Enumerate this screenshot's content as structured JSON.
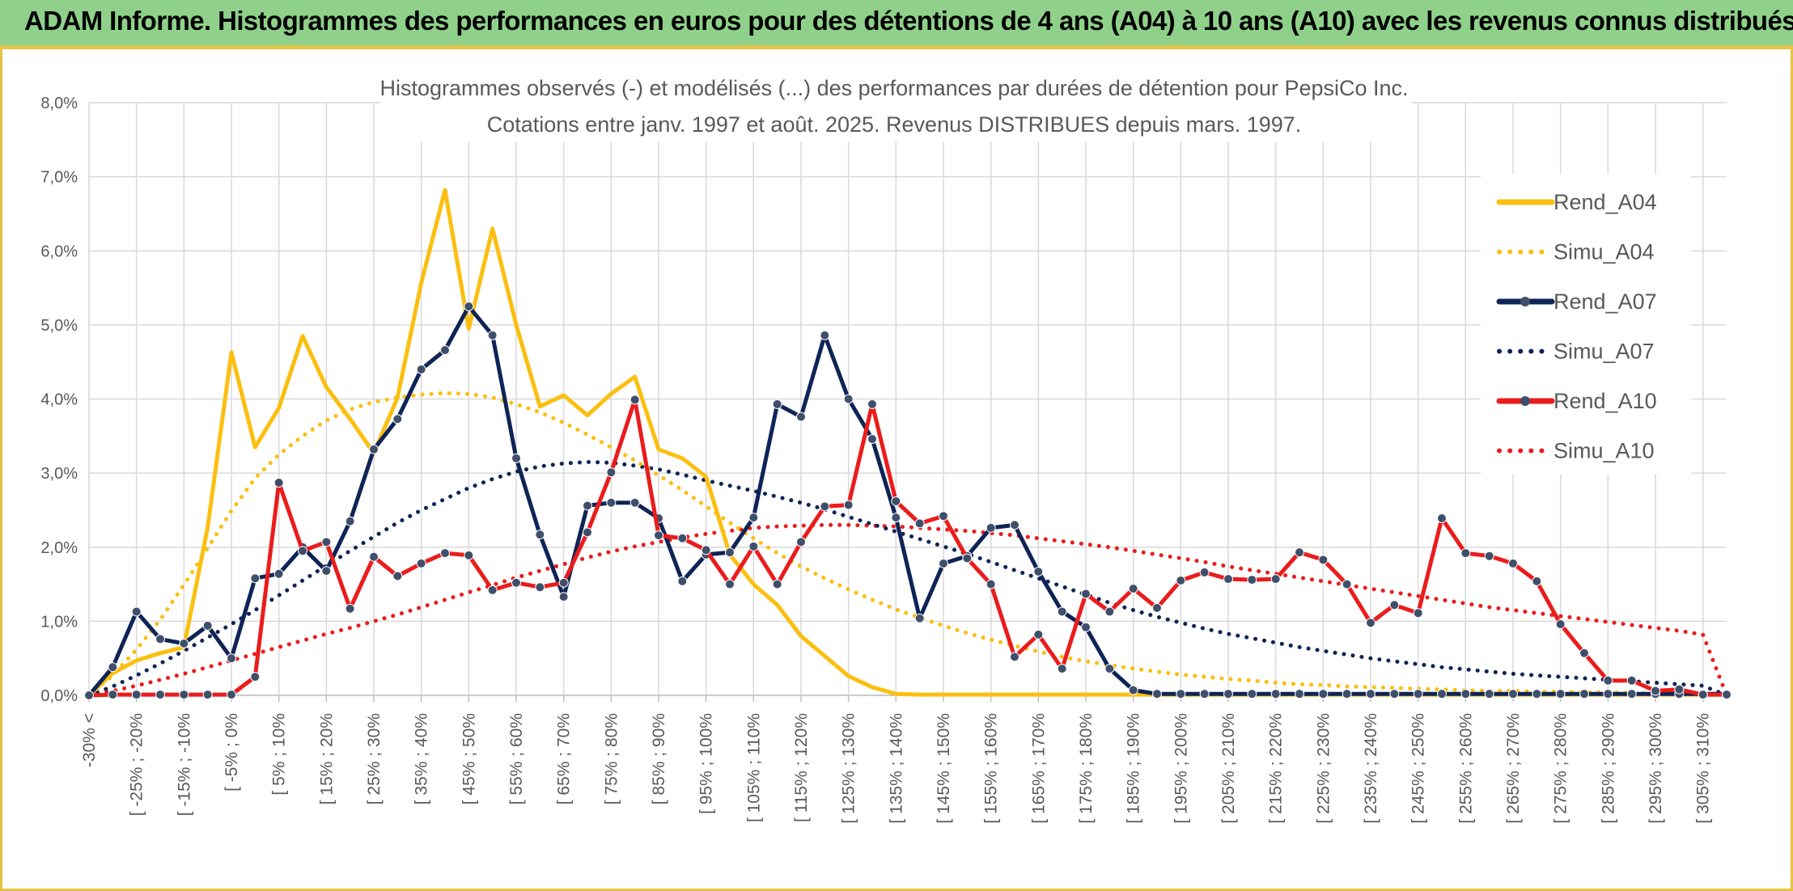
{
  "banner": {
    "title": "ADAM Informe. Histogrammes des performances en euros pour des détentions de 4 ans (A04) à 10 ans (A10) avec les revenus connus distribués"
  },
  "chart_data": {
    "type": "line",
    "title": "Histogrammes observés (-) et modélisés (...) des performances par durées de détention pour PepsiCo Inc.",
    "subtitle": "Cotations entre janv. 1997 et août. 2025. Revenus DISTRIBUES depuis mars. 1997.",
    "ylim": [
      0,
      8
    ],
    "yticks": [
      "0,0%",
      "1,0%",
      "2,0%",
      "3,0%",
      "4,0%",
      "5,0%",
      "6,0%",
      "7,0%",
      "8,0%"
    ],
    "grid": true,
    "legend_position": "right",
    "x_labels": [
      "-30% <",
      "[ -25% ; -20%",
      "[ -15% ; -10%",
      "[ -5% ; 0%",
      "[ 5% ; 10%",
      "[ 15% ; 20%",
      "[ 25% ; 30%",
      "[ 35% ; 40%",
      "[ 45% ; 50%",
      "[ 55% ; 60%",
      "[ 65% ; 70%",
      "[ 75% ; 80%",
      "[ 85% ; 90%",
      "[ 95% ; 100%",
      "[ 105% ; 110%",
      "[ 115% ; 120%",
      "[ 125% ; 130%",
      "[ 135% ; 140%",
      "[ 145% ; 150%",
      "[ 155% ; 160%",
      "[ 165% ; 170%",
      "[ 175% ; 180%",
      "[ 185% ; 190%",
      "[ 195% ; 200%",
      "[ 205% ; 210%",
      "[ 215% ; 220%",
      "[ 225% ; 230%",
      "[ 235% ; 240%",
      "[ 245% ; 250%",
      "[ 255% ; 260%",
      "[ 265% ; 270%",
      "[ 275% ; 280%",
      "[ 285% ; 290%",
      "[ 295% ; 300%",
      "[ 305% ; 310%"
    ],
    "series": [
      {
        "name": "Rend_A04",
        "style": "solid",
        "color": "#fbbf10",
        "markers": false,
        "values": [
          0,
          0.3,
          0.47,
          0.57,
          0.65,
          2.27,
          4.63,
          3.35,
          3.88,
          4.85,
          4.16,
          3.73,
          3.27,
          4.02,
          5.57,
          6.82,
          4.95,
          6.3,
          5.0,
          3.9,
          4.05,
          3.78,
          4.07,
          4.3,
          3.32,
          3.2,
          2.95,
          1.9,
          1.5,
          1.22,
          0.8,
          0.53,
          0.26,
          0.11,
          0.02,
          0.01,
          0.01,
          0.01,
          0.01,
          0.01,
          0.01,
          0.01,
          0.01,
          0.01,
          0.01,
          0.01,
          0.01,
          0.01,
          0.01,
          0.01,
          0.01,
          0.01,
          0.01,
          0.01,
          0.01,
          0.01,
          0.01,
          0.01,
          0.01,
          0.01,
          0.01,
          0.01,
          0.01,
          0.01,
          0.01,
          0.01,
          0.01,
          0.01,
          0.01,
          0.01
        ]
      },
      {
        "name": "Simu_A04",
        "style": "dotted",
        "color": "#fbbf10",
        "markers": false,
        "values": [
          0,
          0.27,
          0.62,
          1.02,
          1.49,
          1.99,
          2.49,
          2.93,
          3.25,
          3.5,
          3.71,
          3.86,
          3.96,
          4.02,
          4.06,
          4.08,
          4.07,
          4.02,
          3.93,
          3.82,
          3.68,
          3.52,
          3.35,
          3.17,
          2.97,
          2.77,
          2.55,
          2.33,
          2.12,
          1.92,
          1.74,
          1.58,
          1.43,
          1.29,
          1.16,
          1.05,
          0.94,
          0.84,
          0.75,
          0.67,
          0.59,
          0.52,
          0.46,
          0.41,
          0.36,
          0.32,
          0.28,
          0.25,
          0.22,
          0.2,
          0.17,
          0.15,
          0.14,
          0.12,
          0.11,
          0.1,
          0.09,
          0.08,
          0.07,
          0.06,
          0.06,
          0.05,
          0.05,
          0.04,
          0.04,
          0.03,
          0.03,
          0.03,
          0.02,
          0.02
        ]
      },
      {
        "name": "Rend_A07",
        "style": "solid",
        "color": "#0f2456",
        "markers": true,
        "values": [
          0,
          0.38,
          1.13,
          0.76,
          0.7,
          0.94,
          0.5,
          1.58,
          1.64,
          2.0,
          1.68,
          2.35,
          3.32,
          3.73,
          4.4,
          4.66,
          5.25,
          4.86,
          3.2,
          2.17,
          1.33,
          2.56,
          2.6,
          2.6,
          2.39,
          1.54,
          1.9,
          1.93,
          2.4,
          3.93,
          3.76,
          4.86,
          4.0,
          3.46,
          2.4,
          1.04,
          1.78,
          1.88,
          2.26,
          2.3,
          1.67,
          1.13,
          0.92,
          0.36,
          0.07,
          0.02,
          0.02,
          0.02,
          0.02,
          0.02,
          0.02,
          0.02,
          0.02,
          0.02,
          0.02,
          0.02,
          0.02,
          0.02,
          0.02,
          0.02,
          0.02,
          0.02,
          0.02,
          0.02,
          0.02,
          0.02,
          0.02,
          0.02,
          0.02,
          0.02
        ]
      },
      {
        "name": "Simu_A07",
        "style": "dotted",
        "color": "#0f2456",
        "markers": false,
        "values": [
          0,
          0.12,
          0.27,
          0.43,
          0.6,
          0.78,
          0.96,
          1.15,
          1.35,
          1.55,
          1.75,
          1.95,
          2.14,
          2.33,
          2.5,
          2.65,
          2.8,
          2.92,
          3.02,
          3.09,
          3.13,
          3.15,
          3.14,
          3.1,
          3.05,
          2.98,
          2.9,
          2.83,
          2.76,
          2.68,
          2.6,
          2.51,
          2.41,
          2.31,
          2.21,
          2.11,
          2.01,
          1.91,
          1.8,
          1.69,
          1.58,
          1.47,
          1.36,
          1.25,
          1.15,
          1.06,
          0.98,
          0.9,
          0.83,
          0.77,
          0.71,
          0.65,
          0.6,
          0.55,
          0.5,
          0.46,
          0.42,
          0.38,
          0.35,
          0.32,
          0.29,
          0.27,
          0.25,
          0.23,
          0.21,
          0.19,
          0.17,
          0.15,
          0.13,
          0
        ]
      },
      {
        "name": "Rend_A10",
        "style": "solid",
        "color": "#ea1c1c",
        "markers": true,
        "values": [
          0,
          0.01,
          0.01,
          0.01,
          0.01,
          0.01,
          0.01,
          0.25,
          2.87,
          1.95,
          2.07,
          1.17,
          1.87,
          1.61,
          1.78,
          1.92,
          1.89,
          1.42,
          1.52,
          1.46,
          1.52,
          2.2,
          3.01,
          3.99,
          2.16,
          2.12,
          1.96,
          1.5,
          2.01,
          1.5,
          2.07,
          2.55,
          2.57,
          3.93,
          2.62,
          2.32,
          2.42,
          1.85,
          1.5,
          0.52,
          0.82,
          0.36,
          1.37,
          1.13,
          1.44,
          1.18,
          1.55,
          1.66,
          1.57,
          1.56,
          1.57,
          1.93,
          1.83,
          1.5,
          0.98,
          1.22,
          1.11,
          2.39,
          1.92,
          1.88,
          1.78,
          1.54,
          0.96,
          0.57,
          0.2,
          0.2,
          0.06,
          0.08,
          0.01,
          0.01
        ]
      },
      {
        "name": "Simu_A10",
        "style": "dotted",
        "color": "#ea1c1c",
        "markers": false,
        "values": [
          0,
          0.06,
          0.13,
          0.21,
          0.29,
          0.38,
          0.47,
          0.56,
          0.65,
          0.74,
          0.83,
          0.91,
          1.0,
          1.09,
          1.19,
          1.29,
          1.39,
          1.49,
          1.59,
          1.68,
          1.77,
          1.86,
          1.94,
          2.01,
          2.07,
          2.13,
          2.18,
          2.22,
          2.26,
          2.28,
          2.29,
          2.3,
          2.3,
          2.29,
          2.28,
          2.26,
          2.24,
          2.22,
          2.19,
          2.16,
          2.12,
          2.08,
          2.04,
          2.0,
          1.95,
          1.9,
          1.85,
          1.8,
          1.74,
          1.69,
          1.64,
          1.59,
          1.54,
          1.49,
          1.44,
          1.39,
          1.34,
          1.29,
          1.24,
          1.19,
          1.15,
          1.11,
          1.07,
          1.03,
          0.99,
          0.95,
          0.91,
          0.87,
          0.82,
          0
        ]
      }
    ]
  }
}
